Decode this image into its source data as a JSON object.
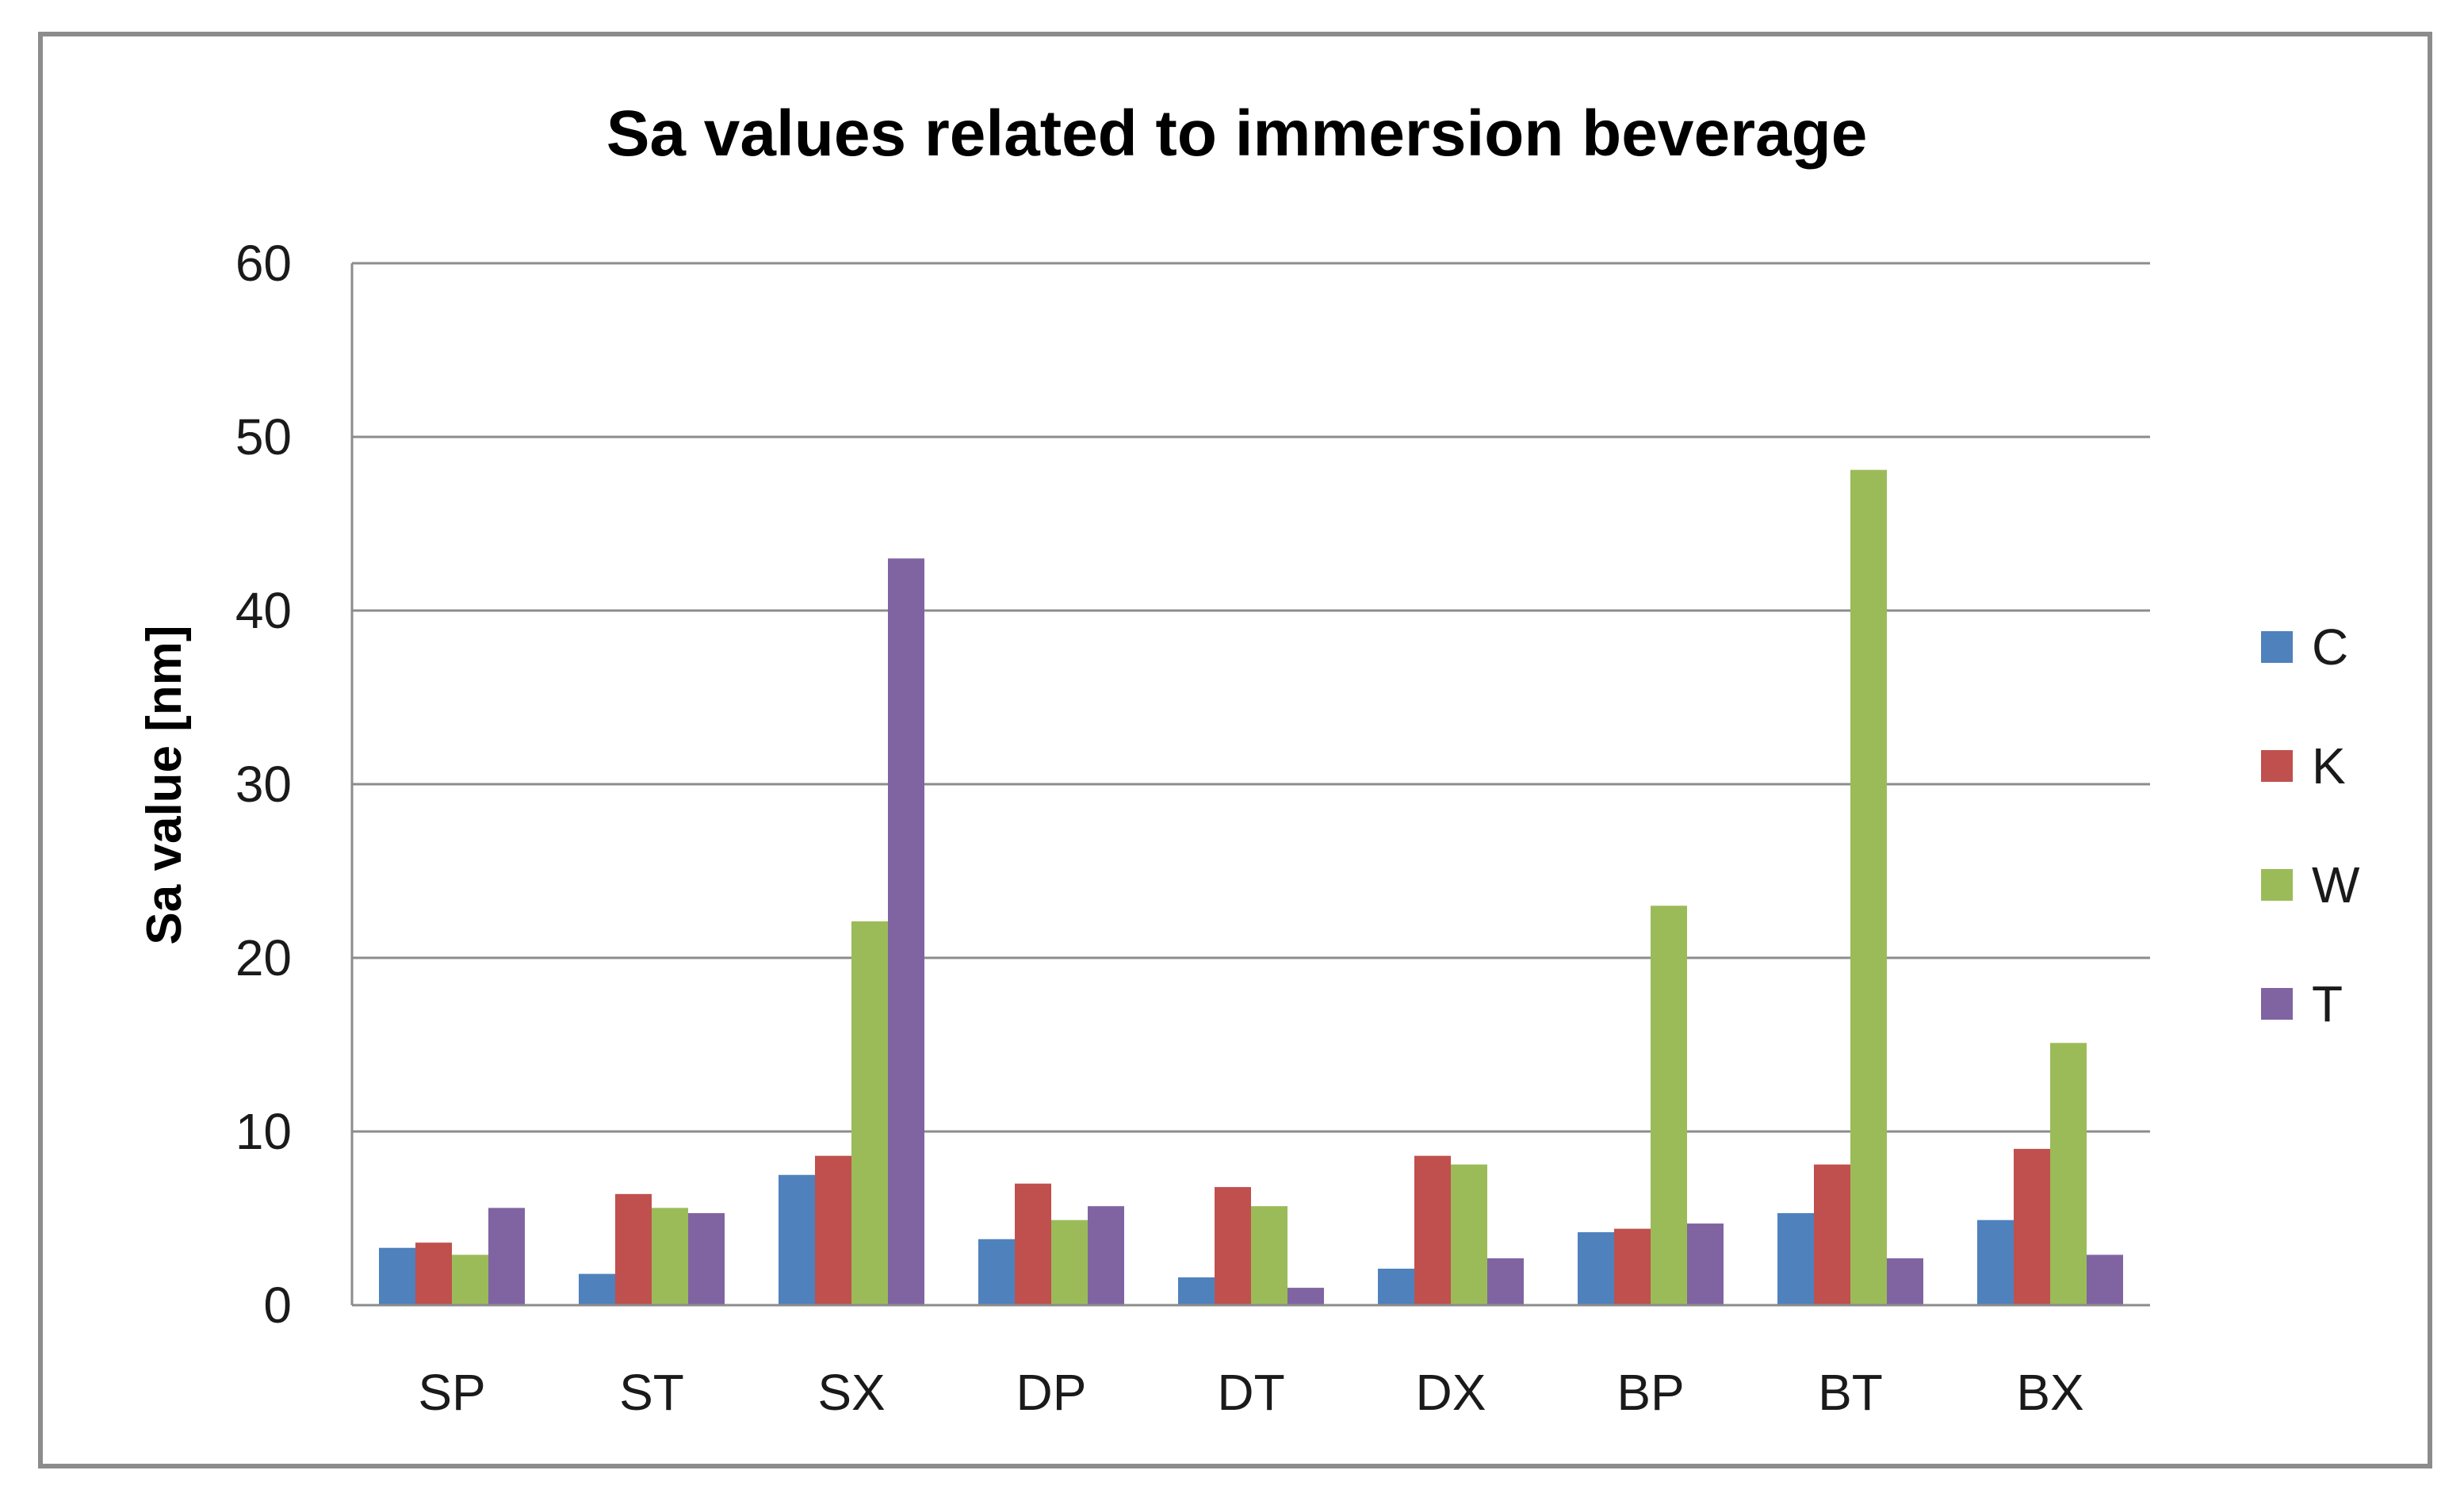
{
  "chart_data": {
    "type": "bar",
    "title": "Sa values related to immersion beverage",
    "xlabel": "",
    "ylabel": "Sa value [nm]",
    "ylim": [
      0,
      60
    ],
    "yticks": [
      0,
      10,
      20,
      30,
      40,
      50,
      60
    ],
    "grid": true,
    "legend_position": "right",
    "categories": [
      "SP",
      "ST",
      "SX",
      "DP",
      "DT",
      "DX",
      "BP",
      "BT",
      "BX"
    ],
    "series": [
      {
        "name": "C",
        "color": "#4f81bd",
        "values": [
          3.3,
          1.8,
          7.5,
          3.8,
          1.6,
          2.1,
          4.2,
          5.3,
          4.9
        ]
      },
      {
        "name": "K",
        "color": "#c0504d",
        "values": [
          3.6,
          6.4,
          8.6,
          7.0,
          6.8,
          8.6,
          4.4,
          8.1,
          9.0
        ]
      },
      {
        "name": "W",
        "color": "#9bbb59",
        "values": [
          2.9,
          5.6,
          22.1,
          4.9,
          5.7,
          8.1,
          23.0,
          48.1,
          15.1
        ]
      },
      {
        "name": "T",
        "color": "#8064a2",
        "values": [
          5.6,
          5.3,
          43.0,
          5.7,
          1.0,
          2.7,
          4.7,
          2.7,
          2.9
        ]
      }
    ]
  }
}
